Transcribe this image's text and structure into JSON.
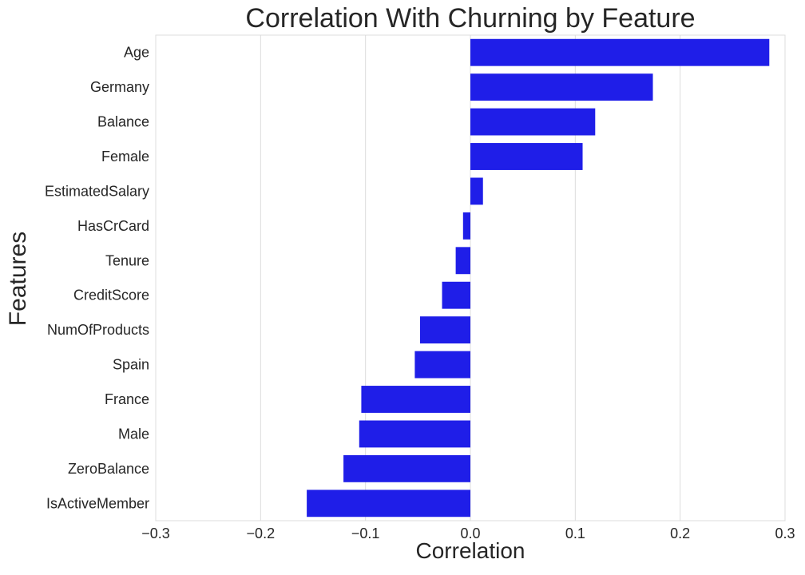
{
  "chart_data": {
    "type": "bar",
    "orientation": "horizontal",
    "title": "Correlation With Churning by Feature",
    "xlabel": "Correlation",
    "ylabel": "Features",
    "categories": [
      "Age",
      "Germany",
      "Balance",
      "Female",
      "EstimatedSalary",
      "HasCrCard",
      "Tenure",
      "CreditScore",
      "NumOfProducts",
      "Spain",
      "France",
      "Male",
      "ZeroBalance",
      "IsActiveMember"
    ],
    "values": [
      0.285,
      0.174,
      0.119,
      0.107,
      0.012,
      -0.007,
      -0.014,
      -0.027,
      -0.048,
      -0.053,
      -0.104,
      -0.106,
      -0.121,
      -0.156
    ],
    "xlim": [
      -0.3,
      0.3
    ],
    "xticks": [
      -0.3,
      -0.2,
      -0.1,
      0.0,
      0.1,
      0.2,
      0.3
    ],
    "xtick_labels": [
      "−0.3",
      "−0.2",
      "−0.1",
      "0.0",
      "0.1",
      "0.2",
      "0.3"
    ],
    "grid": "vertical",
    "bar_color": "#1f1ee8",
    "grid_color": "#dcdcdc"
  }
}
